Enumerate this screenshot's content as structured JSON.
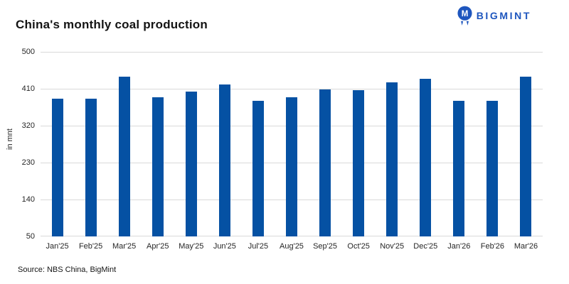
{
  "header": {
    "title": "China's monthly coal production",
    "brand": "BIGMINT",
    "brand_color": "#1e56be"
  },
  "chart_data": {
    "type": "bar",
    "title": "China's monthly coal production",
    "categories": [
      "Jan'25",
      "Feb'25",
      "Mar'25",
      "Apr'25",
      "May'25",
      "Jun'25",
      "Jul'25",
      "Aug'25",
      "Sep'25",
      "Oct'25",
      "Nov'25",
      "Dec'25",
      "Jan'26",
      "Feb'26",
      "Mar'26"
    ],
    "values": [
      385,
      385,
      440,
      390,
      403,
      420,
      380,
      390,
      409,
      406,
      426,
      435,
      380,
      380,
      440
    ],
    "unit": "mnt",
    "xlabel": "",
    "ylabel": "in mnt",
    "ylim": [
      50,
      500
    ],
    "yticks": [
      50,
      140,
      230,
      320,
      410,
      500
    ],
    "bar_color": "#0551a3",
    "gridline_color": "#d9d9d9",
    "grid": "horizontal",
    "legend": "none"
  },
  "footer": {
    "source": "Source: NBS China, BigMint"
  }
}
